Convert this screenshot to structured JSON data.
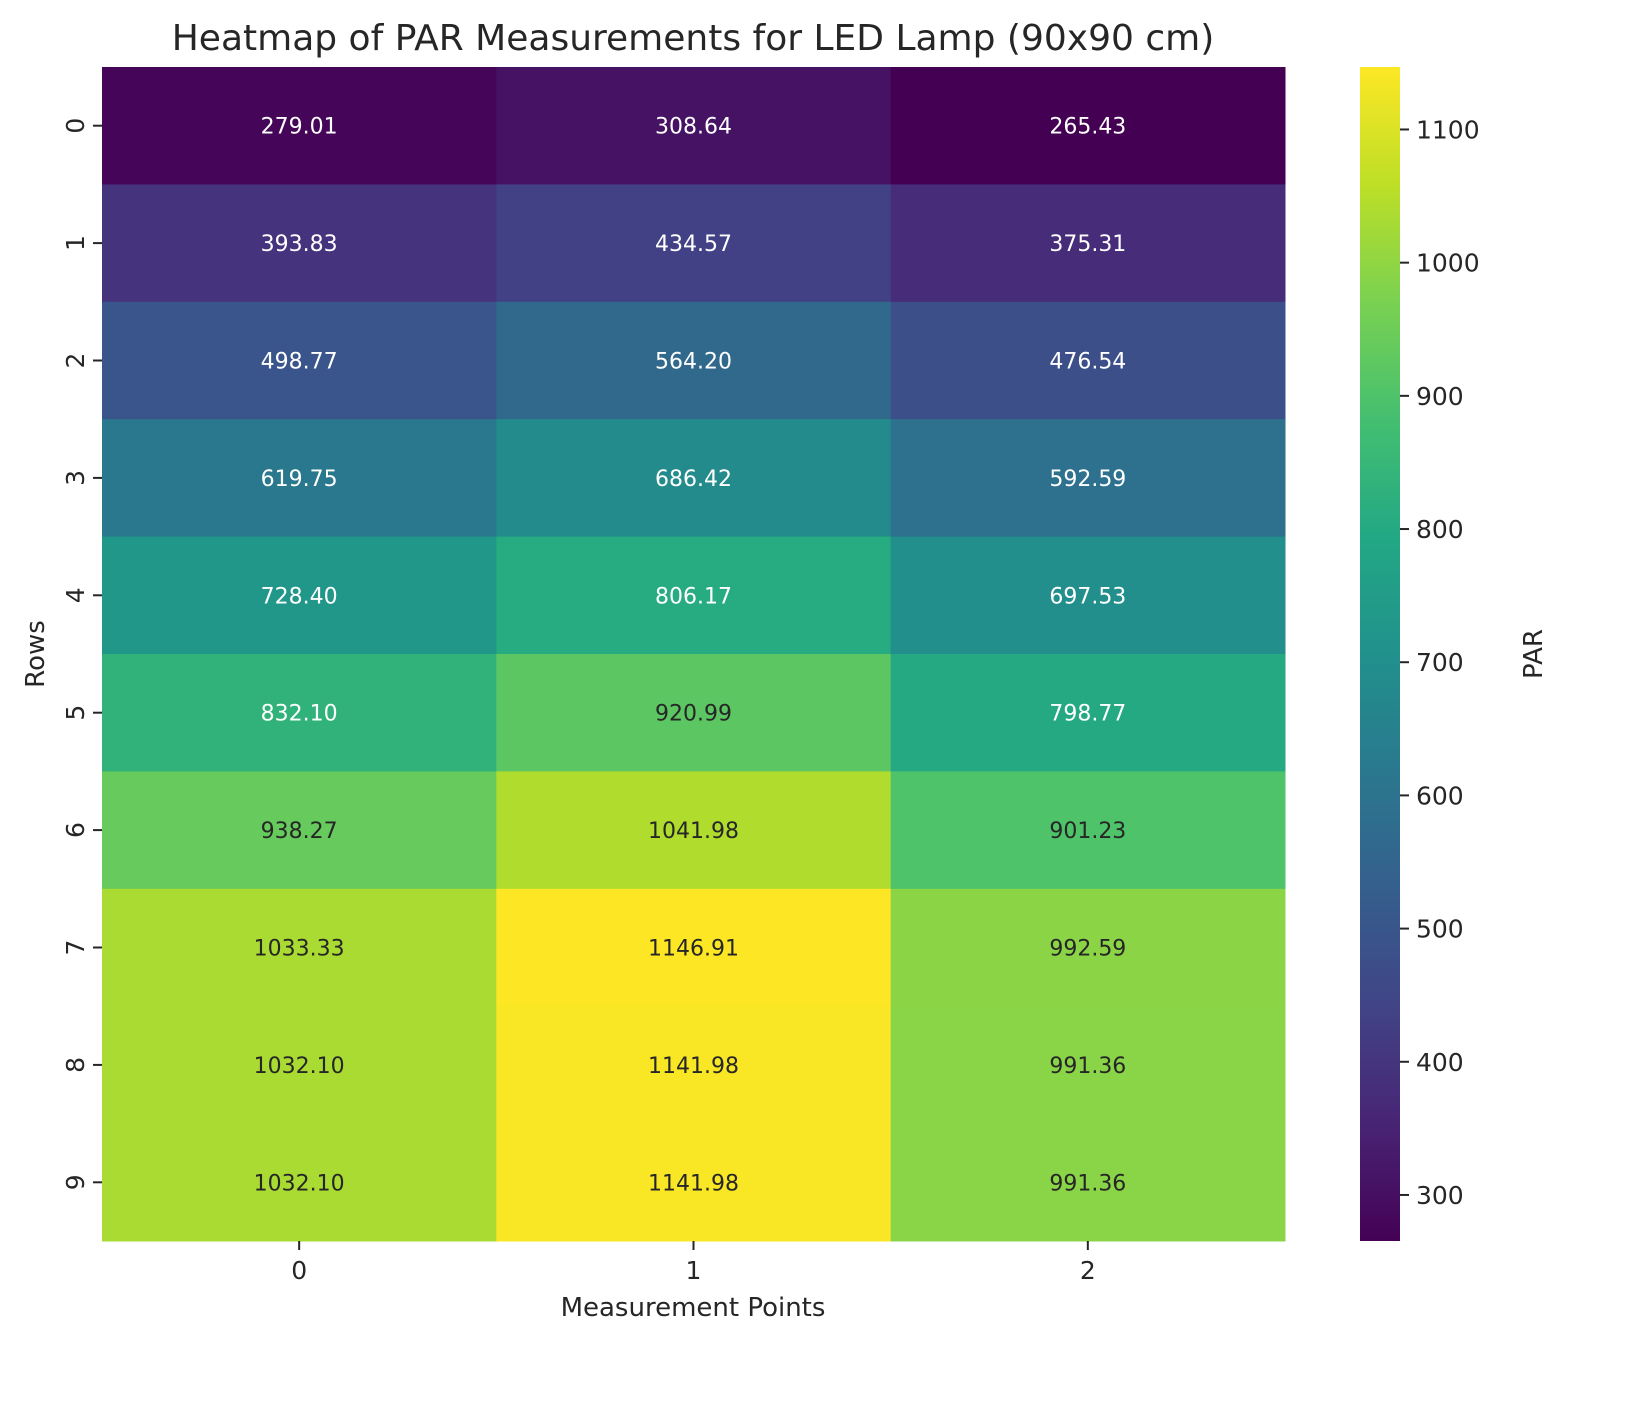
{
  "chart_data": {
    "type": "heatmap",
    "title": "Heatmap of PAR Measurements for LED Lamp (90x90 cm)",
    "xlabel": "Measurement Points",
    "ylabel": "Rows",
    "colorbar_label": "PAR",
    "colormap": "viridis",
    "x_categories": [
      "0",
      "1",
      "2"
    ],
    "y_categories": [
      "0",
      "1",
      "2",
      "3",
      "4",
      "5",
      "6",
      "7",
      "8",
      "9"
    ],
    "values": [
      [
        279.01,
        308.64,
        265.43
      ],
      [
        393.83,
        434.57,
        375.31
      ],
      [
        498.77,
        564.2,
        476.54
      ],
      [
        619.75,
        686.42,
        592.59
      ],
      [
        728.4,
        806.17,
        697.53
      ],
      [
        832.1,
        920.99,
        798.77
      ],
      [
        938.27,
        1041.98,
        901.23
      ],
      [
        1033.33,
        1146.91,
        992.59
      ],
      [
        1032.1,
        1141.98,
        991.36
      ],
      [
        1032.1,
        1141.98,
        991.36
      ]
    ],
    "value_format": "%.2f",
    "color_range": [
      265.43,
      1146.91
    ],
    "colorbar_ticks": [
      300,
      400,
      500,
      600,
      700,
      800,
      900,
      1000,
      1100
    ],
    "colorbar_stops": [
      "#440154",
      "#482475",
      "#414487",
      "#355f8d",
      "#2a788e",
      "#21918c",
      "#22a884",
      "#44bf70",
      "#7ad151",
      "#bddf26",
      "#fde725"
    ],
    "annotation_colors": {
      "light": "#ffffff",
      "dark": "#262626"
    }
  }
}
